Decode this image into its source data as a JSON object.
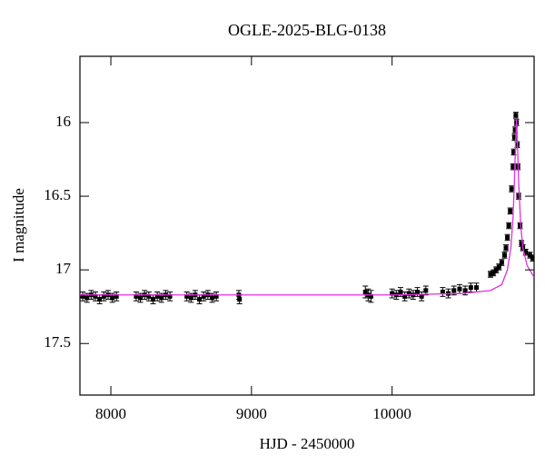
{
  "chart_data": {
    "type": "scatter",
    "title": "OGLE-2025-BLG-0138",
    "x_label": "HJD - 2450000",
    "y_label": "I magnitude",
    "xlim": [
      7780,
      11010
    ],
    "ylim": [
      17.85,
      15.55
    ],
    "xticks": [
      8000,
      9000,
      10000
    ],
    "yticks": [
      16,
      16.5,
      17,
      17.5
    ],
    "series": [
      {
        "color": "#000000",
        "x": [
          7800,
          7830,
          7860,
          7890,
          7920,
          7950,
          7980,
          8010,
          8040,
          8180,
          8210,
          8240,
          8270,
          8300,
          8330,
          8360,
          8390,
          8420,
          8540,
          8570,
          8600,
          8630,
          8660,
          8690,
          8720,
          8750,
          8910,
          8915,
          9810,
          9830,
          9850,
          10000,
          10030,
          10060,
          10090,
          10120,
          10150,
          10180,
          10210,
          10240,
          10360,
          10400,
          10440,
          10480,
          10520,
          10560,
          10600,
          10700,
          10720,
          10740,
          10760,
          10780,
          10800,
          10810,
          10820,
          10830,
          10840,
          10850,
          10860,
          10865,
          10870,
          10875,
          10880,
          10885,
          10890,
          10895,
          10900,
          10910,
          10920,
          10930,
          10950,
          10980,
          11000
        ],
        "values": [
          17.18,
          17.19,
          17.17,
          17.18,
          17.2,
          17.18,
          17.17,
          17.19,
          17.18,
          17.18,
          17.19,
          17.17,
          17.18,
          17.2,
          17.18,
          17.19,
          17.17,
          17.18,
          17.18,
          17.19,
          17.17,
          17.2,
          17.18,
          17.17,
          17.19,
          17.18,
          17.17,
          17.2,
          17.15,
          17.17,
          17.18,
          17.16,
          17.17,
          17.15,
          17.18,
          17.16,
          17.17,
          17.15,
          17.18,
          17.14,
          17.15,
          17.16,
          17.14,
          17.13,
          17.14,
          17.12,
          17.12,
          17.03,
          17.02,
          17.0,
          16.98,
          16.95,
          16.9,
          16.85,
          16.78,
          16.7,
          16.6,
          16.45,
          16.3,
          16.2,
          16.1,
          16.05,
          15.95,
          16.0,
          16.15,
          16.3,
          16.5,
          16.7,
          16.82,
          16.85,
          16.88,
          16.9,
          16.92
        ],
        "errors": [
          0.03,
          0.03,
          0.03,
          0.03,
          0.03,
          0.03,
          0.03,
          0.03,
          0.03,
          0.03,
          0.03,
          0.03,
          0.03,
          0.03,
          0.03,
          0.03,
          0.03,
          0.03,
          0.03,
          0.03,
          0.03,
          0.03,
          0.03,
          0.03,
          0.03,
          0.03,
          0.03,
          0.03,
          0.04,
          0.04,
          0.04,
          0.03,
          0.03,
          0.03,
          0.03,
          0.03,
          0.03,
          0.03,
          0.03,
          0.03,
          0.03,
          0.03,
          0.03,
          0.03,
          0.03,
          0.03,
          0.03,
          0.02,
          0.02,
          0.02,
          0.02,
          0.02,
          0.02,
          0.02,
          0.02,
          0.02,
          0.02,
          0.02,
          0.02,
          0.02,
          0.02,
          0.02,
          0.02,
          0.02,
          0.02,
          0.02,
          0.02,
          0.02,
          0.02,
          0.02,
          0.02,
          0.02,
          0.02
        ]
      },
      {
        "type": "line",
        "color": "#e030e0",
        "x": [
          7780,
          10000,
          10500,
          10700,
          10780,
          10820,
          10845,
          10860,
          10870,
          10878,
          10885,
          10892,
          10900,
          10915,
          10930,
          10960,
          11010
        ],
        "values": [
          17.17,
          17.17,
          17.16,
          17.14,
          17.1,
          17.0,
          16.85,
          16.65,
          16.4,
          16.15,
          15.98,
          16.15,
          16.4,
          16.7,
          16.85,
          16.97,
          17.05
        ]
      }
    ]
  }
}
